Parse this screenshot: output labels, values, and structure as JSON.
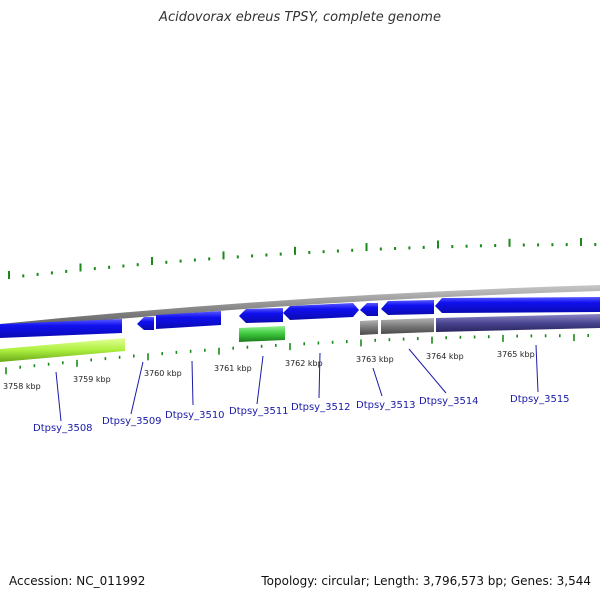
{
  "title": "Acidovorax ebreus TPSY, complete genome",
  "footer": {
    "accession": "Accession: NC_011992",
    "summary": "Topology: circular; Length: 3,796,573 bp; Genes: 3,544"
  },
  "colors": {
    "backbone": "#888888",
    "cds_forward": "#1414e6",
    "cds_reverse_highlight": "#a4e83c",
    "cds_reverse_green": "#38c038",
    "pseudo_gray": "#7a7a7a",
    "slate": "#4a4590",
    "gc_skew_positive": "#1a8a1a",
    "label_blue": "#1a1aa8"
  },
  "kbp_labels": [
    "3758 kbp",
    "3759 kbp",
    "3760 kbp",
    "3761 kbp",
    "3762 kbp",
    "3763 kbp",
    "3764 kbp",
    "3765 kbp"
  ],
  "gene_labels": [
    "Dtpsy_3508",
    "Dtpsy_3509",
    "Dtpsy_3510",
    "Dtpsy_3511",
    "Dtpsy_3512",
    "Dtpsy_3513",
    "Dtpsy_3514",
    "Dtpsy_3515"
  ]
}
